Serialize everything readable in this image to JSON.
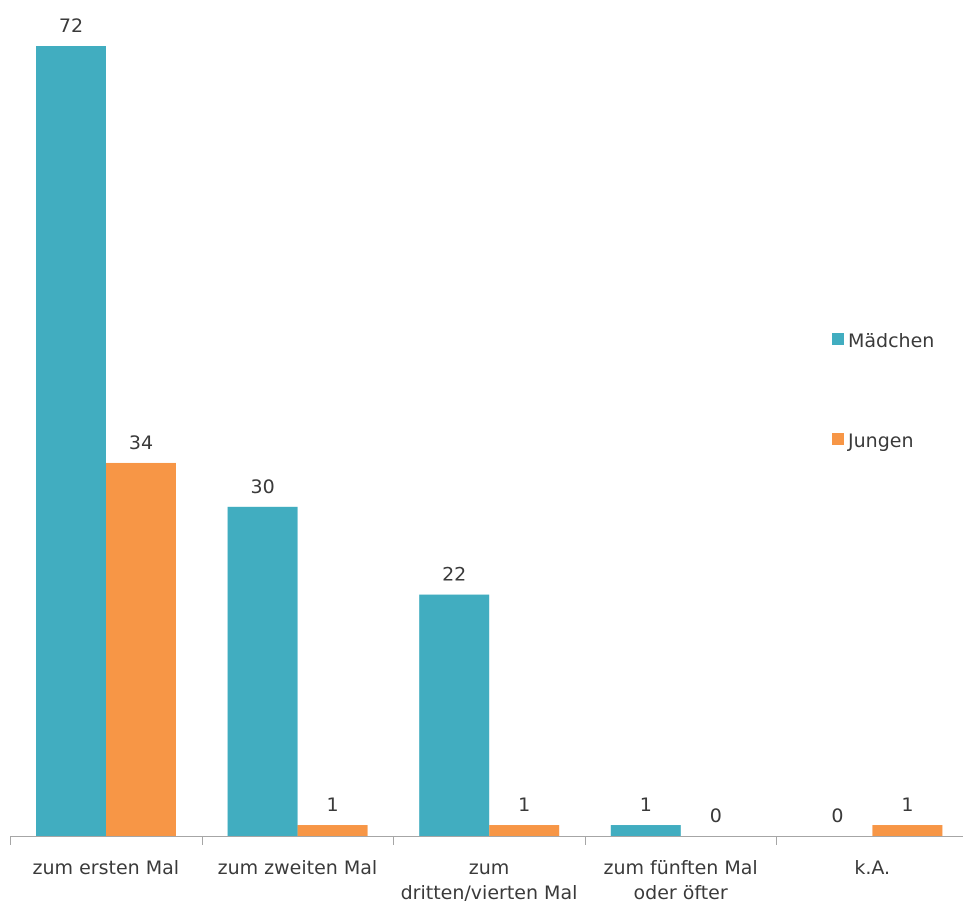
{
  "chart_data": {
    "type": "bar",
    "categories": [
      [
        "zum ersten Mal"
      ],
      [
        "zum zweiten Mal"
      ],
      [
        "zum",
        "dritten/vierten Mal"
      ],
      [
        "zum fünften Mal",
        "oder öfter"
      ],
      [
        "k.A."
      ]
    ],
    "series": [
      {
        "name": "Mädchen",
        "color": "#41adc0",
        "values": [
          72,
          30,
          22,
          1,
          0
        ]
      },
      {
        "name": "Jungen",
        "color": "#f79646",
        "values": [
          34,
          1,
          1,
          0,
          1
        ]
      }
    ],
    "ylim": [
      0,
      72
    ],
    "legend_position": "right",
    "grid": false,
    "title": "",
    "xlabel": "",
    "ylabel": ""
  }
}
